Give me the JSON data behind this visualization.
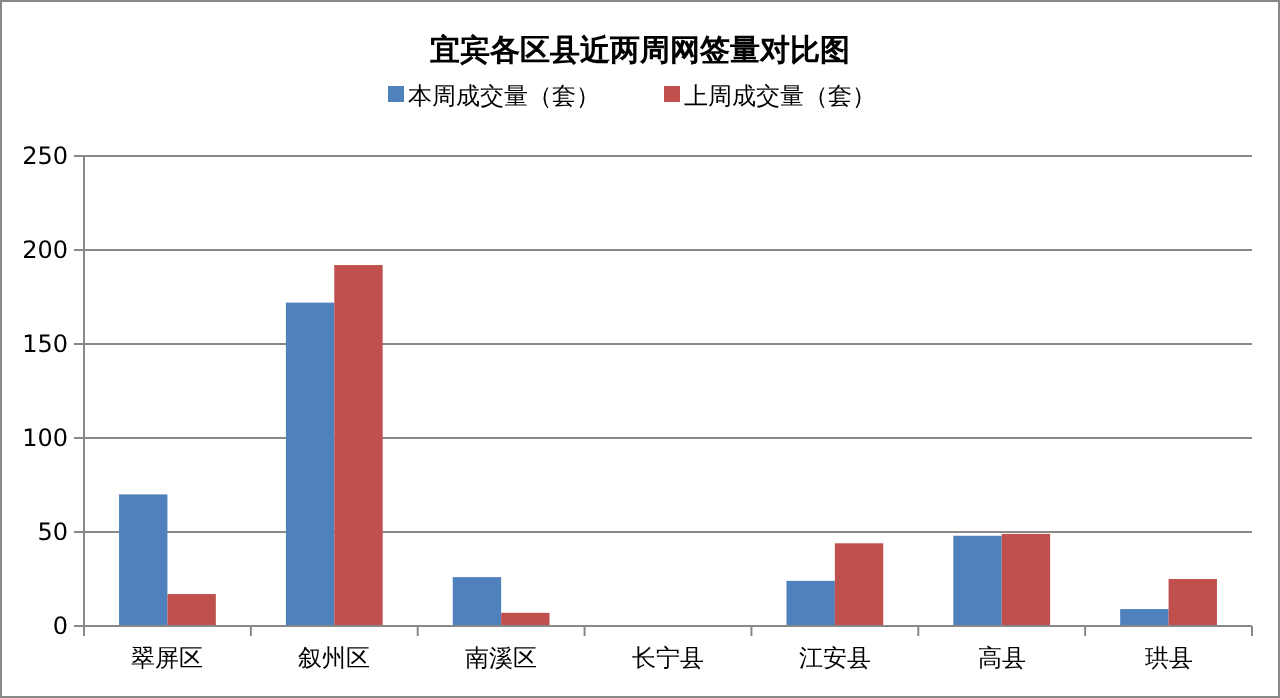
{
  "chart_data": {
    "type": "bar",
    "title": "宜宾各区县近两周网签量对比图",
    "categories": [
      "翠屏区",
      "叙州区",
      "南溪区",
      "长宁县",
      "江安县",
      "高县",
      "珙县"
    ],
    "series": [
      {
        "name": "本周成交量（套）",
        "color": "#4f81bd",
        "values": [
          70,
          172,
          26,
          0,
          24,
          48,
          9
        ]
      },
      {
        "name": "上周成交量（套）",
        "color": "#c0504d",
        "values": [
          17,
          192,
          7,
          0,
          44,
          49,
          25
        ]
      }
    ],
    "ylim": [
      0,
      250
    ],
    "yticks": [
      0,
      50,
      100,
      150,
      200,
      250
    ],
    "grid": "y",
    "legend": "top"
  }
}
